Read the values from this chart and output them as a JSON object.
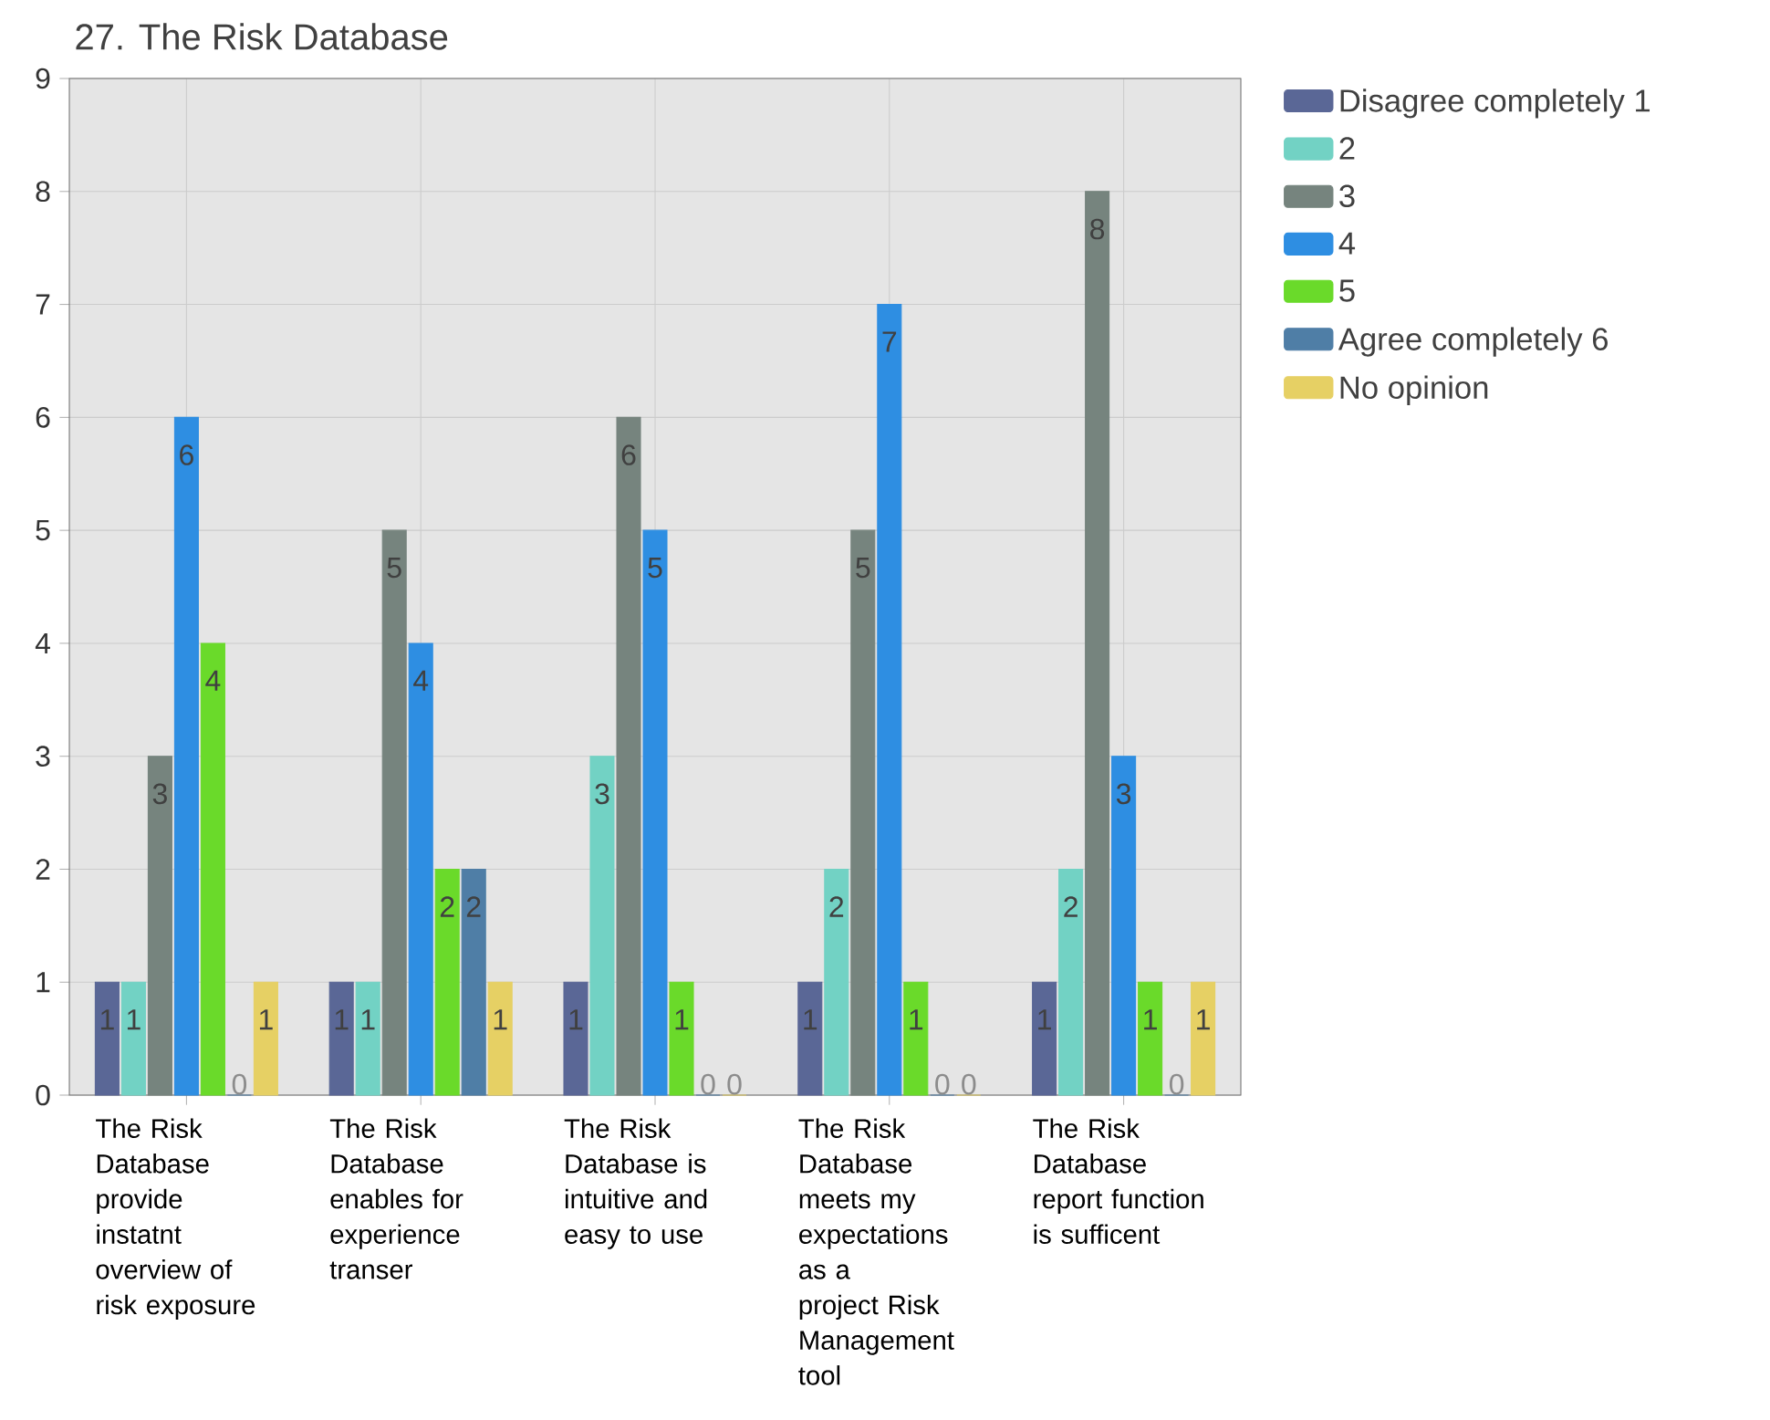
{
  "chart_data": {
    "type": "bar",
    "title": "27. The Risk Database",
    "categories": [
      "The Risk Database provide instatnt overview of risk exposure",
      "The Risk Database enables for experience transer",
      "The Risk Database is intuitive and easy to use",
      "The Risk Database meets my expectations as a project Risk Management tool",
      "The Risk Database report function is sufficent"
    ],
    "series": [
      {
        "name": "Disagree completely 1",
        "color": "#5a6796",
        "values": [
          1,
          1,
          1,
          1,
          1
        ]
      },
      {
        "name": "2",
        "color": "#72d2c4",
        "values": [
          1,
          1,
          3,
          2,
          2
        ]
      },
      {
        "name": "3",
        "color": "#76847e",
        "values": [
          3,
          5,
          6,
          5,
          8
        ]
      },
      {
        "name": "4",
        "color": "#2e8ee2",
        "values": [
          6,
          4,
          5,
          7,
          3
        ]
      },
      {
        "name": "5",
        "color": "#6ada2a",
        "values": [
          4,
          2,
          1,
          1,
          1
        ]
      },
      {
        "name": "Agree completely 6",
        "color": "#4f7ea6",
        "values": [
          0,
          2,
          0,
          0,
          0
        ]
      },
      {
        "name": "No opinion",
        "color": "#e6d064",
        "values": [
          1,
          1,
          0,
          0,
          1
        ]
      }
    ],
    "ylim": [
      0,
      9
    ],
    "yticks": [
      0,
      1,
      2,
      3,
      4,
      5,
      6,
      7,
      8,
      9
    ],
    "grid": true,
    "legend": "top right",
    "data_labels": true
  }
}
